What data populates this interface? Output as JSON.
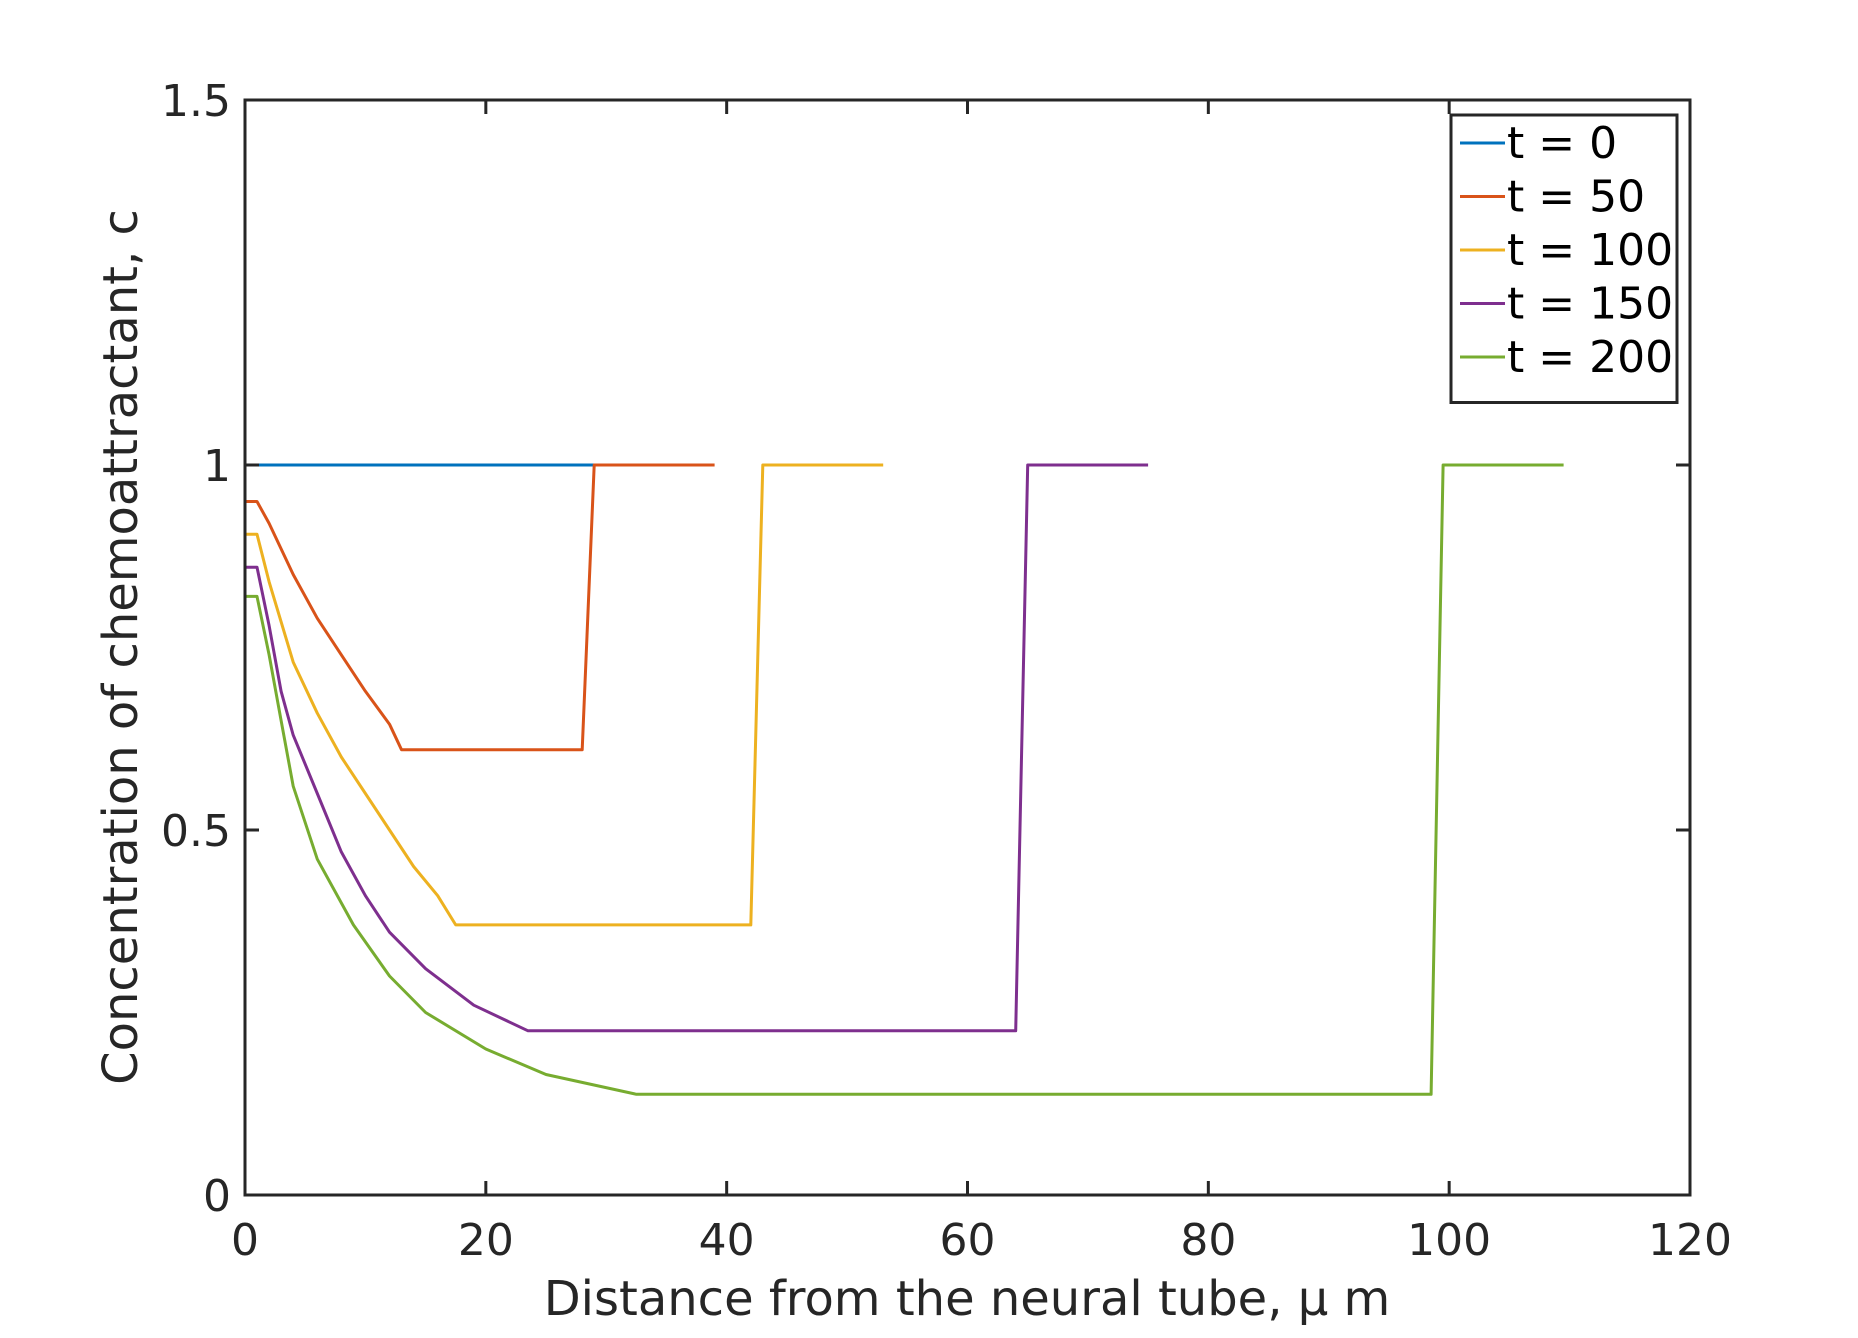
{
  "chart_data": {
    "type": "line",
    "xlabel": "Distance from the neural tube, μ m",
    "ylabel": "Concentration  of chemoattractant, c",
    "xlim": [
      0,
      120
    ],
    "ylim": [
      0,
      1.5
    ],
    "xticks": [
      "0",
      "20",
      "40",
      "60",
      "80",
      "100",
      "120"
    ],
    "yticks": [
      "0",
      "0.5",
      "1",
      "1.5"
    ],
    "xtick_values": [
      0,
      20,
      40,
      60,
      80,
      100,
      120
    ],
    "ytick_values": [
      0,
      0.5,
      1,
      1.5
    ],
    "grid": false,
    "legend_position": "top-right",
    "series": [
      {
        "name": "t = 0",
        "color": "#0072BD",
        "points": [
          [
            0,
            1.0
          ],
          [
            29,
            1.0
          ]
        ]
      },
      {
        "name": "t = 50",
        "color": "#D95319",
        "points": [
          [
            0,
            0.95
          ],
          [
            1,
            0.95
          ],
          [
            2,
            0.92
          ],
          [
            4,
            0.85
          ],
          [
            6,
            0.79
          ],
          [
            8,
            0.74
          ],
          [
            10,
            0.69
          ],
          [
            12,
            0.645
          ],
          [
            13,
            0.61
          ],
          [
            28,
            0.61
          ],
          [
            29,
            1.0
          ],
          [
            39,
            1.0
          ]
        ]
      },
      {
        "name": "t = 100",
        "color": "#EDB120",
        "points": [
          [
            0,
            0.905
          ],
          [
            1,
            0.905
          ],
          [
            2,
            0.84
          ],
          [
            4,
            0.73
          ],
          [
            6,
            0.66
          ],
          [
            8,
            0.6
          ],
          [
            10,
            0.55
          ],
          [
            12,
            0.5
          ],
          [
            14,
            0.45
          ],
          [
            16,
            0.41
          ],
          [
            17.5,
            0.37
          ],
          [
            42,
            0.37
          ],
          [
            43,
            1.0
          ],
          [
            53,
            1.0
          ]
        ]
      },
      {
        "name": "t = 150",
        "color": "#7E2F8E",
        "points": [
          [
            0,
            0.86
          ],
          [
            1,
            0.86
          ],
          [
            2,
            0.78
          ],
          [
            3,
            0.69
          ],
          [
            4,
            0.63
          ],
          [
            6,
            0.55
          ],
          [
            8,
            0.47
          ],
          [
            10,
            0.41
          ],
          [
            12,
            0.36
          ],
          [
            15,
            0.31
          ],
          [
            19,
            0.26
          ],
          [
            23.5,
            0.225
          ],
          [
            64,
            0.225
          ],
          [
            65,
            1.0
          ],
          [
            75,
            1.0
          ]
        ]
      },
      {
        "name": "t = 200",
        "color": "#77AC30",
        "points": [
          [
            0,
            0.82
          ],
          [
            1,
            0.82
          ],
          [
            2,
            0.74
          ],
          [
            3,
            0.65
          ],
          [
            4,
            0.56
          ],
          [
            6,
            0.46
          ],
          [
            9,
            0.37
          ],
          [
            12,
            0.3
          ],
          [
            15,
            0.25
          ],
          [
            20,
            0.2
          ],
          [
            25,
            0.165
          ],
          [
            32.5,
            0.138
          ],
          [
            98.5,
            0.138
          ],
          [
            99.5,
            1.0
          ],
          [
            109.5,
            1.0
          ]
        ]
      }
    ]
  }
}
